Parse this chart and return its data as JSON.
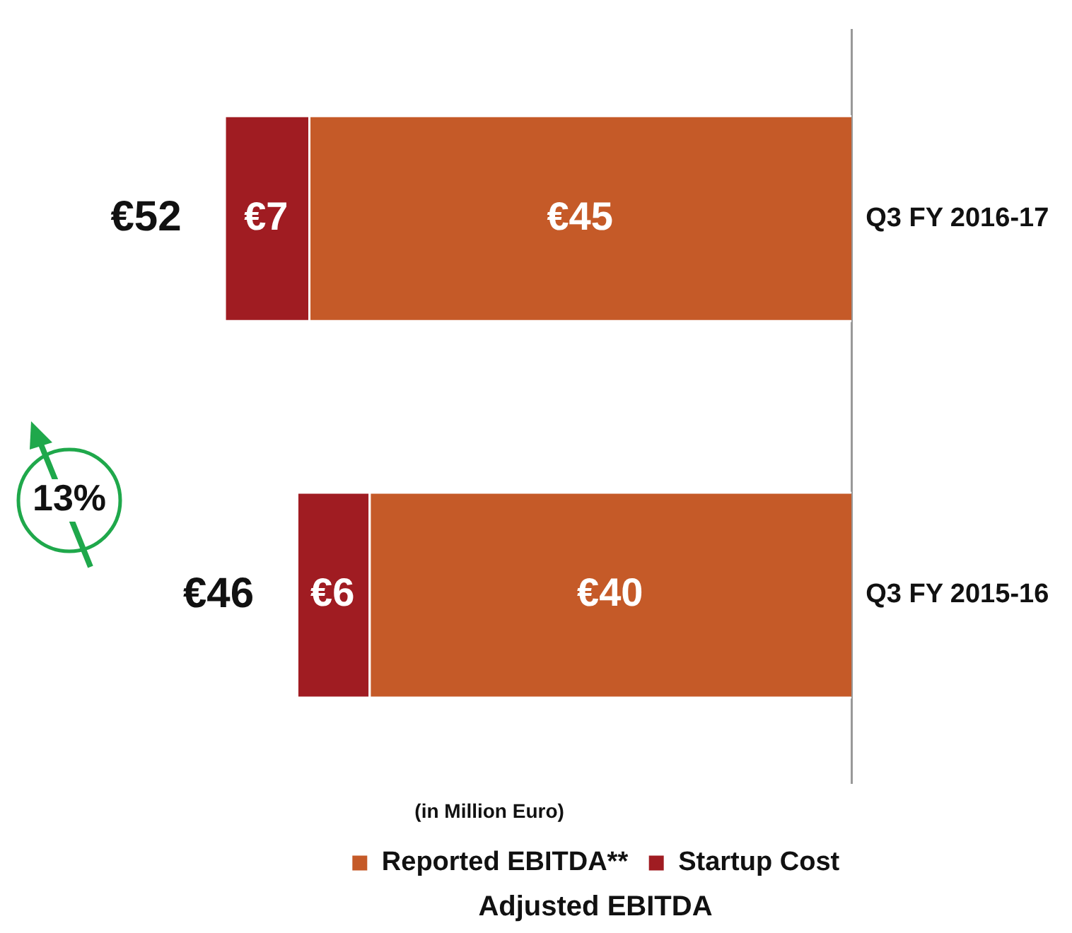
{
  "chart_data": {
    "type": "bar",
    "stacked": true,
    "orientation": "horizontal",
    "xlabel": "(in Million Euro)",
    "categories": [
      "Q3 FY 2016-17",
      "Q3 FY 2015-16"
    ],
    "series": [
      {
        "name": "Reported EBITDA**",
        "color": "#c55a28",
        "values": [
          45,
          40
        ],
        "value_labels": [
          "€45",
          "€40"
        ]
      },
      {
        "name": "Startup Cost",
        "color": "#a01c22",
        "values": [
          7,
          6
        ],
        "value_labels": [
          "€7",
          "€6"
        ]
      }
    ],
    "totals": [
      "€52",
      "€46"
    ],
    "legend": "bottom",
    "annotations": [
      "13%",
      "Adjusted EBITDA"
    ]
  }
}
